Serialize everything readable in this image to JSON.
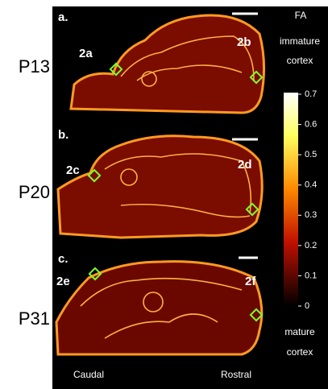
{
  "figure": {
    "rows": [
      {
        "label": "P13",
        "panel": "a.",
        "regions": [
          "2a",
          "2b"
        ]
      },
      {
        "label": "P20",
        "panel": "b.",
        "regions": [
          "2c",
          "2d"
        ]
      },
      {
        "label": "P31",
        "panel": "c.",
        "regions": [
          "2e",
          "2f"
        ]
      }
    ],
    "colorbar": {
      "title": "FA",
      "top_label": [
        "immature",
        "cortex"
      ],
      "bottom_label": [
        "mature",
        "cortex"
      ],
      "lim": [
        0,
        0.7
      ],
      "ticks": [
        0,
        0.1,
        0.2,
        0.3,
        0.4,
        0.5,
        0.6,
        0.7
      ]
    },
    "axis_labels": [
      "Caudal",
      "Rostral"
    ]
  }
}
